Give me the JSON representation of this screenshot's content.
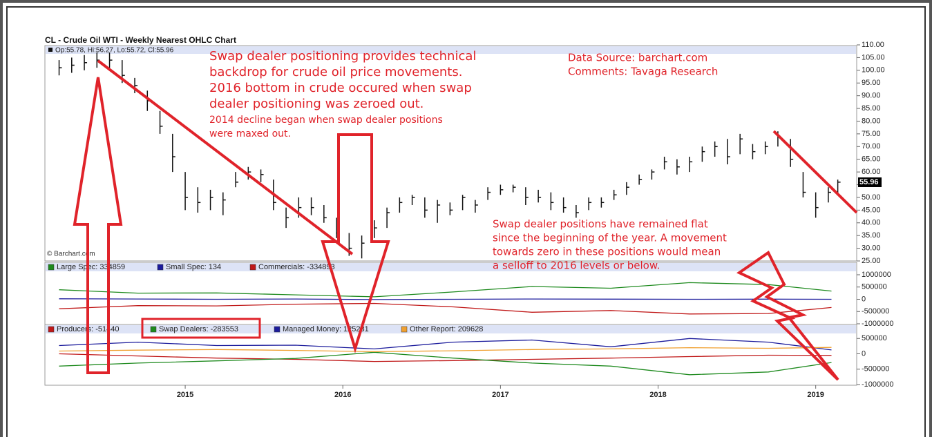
{
  "chart_data": [
    {
      "type": "ohlc",
      "title": "CL - Crude Oil WTI - Weekly Nearest OHLC Chart",
      "ohlc_header": "Op:55.78, Hi:56.27, Lo:55.72, Cl:55.96",
      "last_price": 55.96,
      "source": "© Barchart.com",
      "color": "#111111",
      "x": [
        2014.2,
        2014.28,
        2014.36,
        2014.44,
        2014.52,
        2014.6,
        2014.68,
        2014.76,
        2014.84,
        2014.92,
        2015.0,
        2015.08,
        2015.16,
        2015.24,
        2015.32,
        2015.4,
        2015.48,
        2015.56,
        2015.64,
        2015.72,
        2015.8,
        2015.88,
        2015.96,
        2016.04,
        2016.12,
        2016.2,
        2016.28,
        2016.36,
        2016.44,
        2016.52,
        2016.6,
        2016.68,
        2016.76,
        2016.84,
        2016.92,
        2017.0,
        2017.08,
        2017.16,
        2017.24,
        2017.32,
        2017.4,
        2017.48,
        2017.56,
        2017.64,
        2017.72,
        2017.8,
        2017.88,
        2017.96,
        2018.04,
        2018.12,
        2018.2,
        2018.28,
        2018.36,
        2018.44,
        2018.52,
        2018.6,
        2018.68,
        2018.76,
        2018.84,
        2018.92,
        2019.0,
        2019.08,
        2019.14
      ],
      "high": [
        104,
        105,
        106,
        107,
        107,
        104,
        97,
        92,
        84,
        75,
        60,
        54,
        53,
        52,
        60,
        62,
        61,
        57,
        46,
        50,
        50,
        47,
        42,
        36,
        35,
        41,
        46,
        50,
        51,
        50,
        49,
        48,
        51,
        49,
        54,
        55,
        55,
        54,
        53,
        52,
        50,
        47,
        50,
        50,
        53,
        56,
        59,
        61,
        66,
        65,
        66,
        70,
        72,
        73,
        75,
        71,
        72,
        76,
        73,
        60,
        52,
        54,
        57
      ],
      "low": [
        98,
        99,
        100,
        101,
        101,
        95,
        91,
        84,
        75,
        60,
        45,
        44,
        45,
        43,
        54,
        57,
        56,
        45,
        38,
        42,
        43,
        40,
        34,
        27,
        26,
        34,
        38,
        44,
        47,
        42,
        40,
        43,
        45,
        44,
        49,
        51,
        52,
        47,
        48,
        45,
        44,
        42,
        45,
        46,
        49,
        51,
        55,
        57,
        61,
        59,
        60,
        64,
        66,
        63,
        67,
        65,
        67,
        70,
        62,
        50,
        42,
        48,
        51
      ],
      "close": [
        101,
        102,
        103,
        104,
        104,
        98,
        94,
        88,
        78,
        66,
        50,
        48,
        50,
        49,
        56,
        60,
        59,
        48,
        42,
        46,
        46,
        42,
        36,
        30,
        32,
        38,
        44,
        48,
        50,
        45,
        47,
        45,
        50,
        47,
        52,
        53,
        54,
        50,
        50,
        48,
        46,
        44,
        48,
        48,
        51,
        54,
        57,
        60,
        64,
        62,
        64,
        68,
        70,
        66,
        73,
        68,
        70,
        74,
        65,
        52,
        46,
        52,
        56
      ],
      "xlim": [
        2014.11,
        2019.26
      ],
      "xticks": [
        2015,
        2016,
        2017,
        2018,
        2019
      ],
      "ylim": [
        25,
        110
      ],
      "yticks": [
        {
          "value": 110,
          "label": "110.00"
        },
        {
          "value": 105,
          "label": "105.00"
        },
        {
          "value": 100,
          "label": "100.00"
        },
        {
          "value": 95,
          "label": "95.00"
        },
        {
          "value": 90,
          "label": "90.00"
        },
        {
          "value": 85,
          "label": "85.00"
        },
        {
          "value": 80,
          "label": "80.00"
        },
        {
          "value": 75,
          "label": "75.00"
        },
        {
          "value": 70,
          "label": "70.00"
        },
        {
          "value": 65,
          "label": "65.00"
        },
        {
          "value": 60,
          "label": "60.00"
        },
        {
          "value": 55,
          "label": "55.00"
        },
        {
          "value": 50,
          "label": "50.00"
        },
        {
          "value": 45,
          "label": "45.00"
        },
        {
          "value": 40,
          "label": "40.00"
        },
        {
          "value": 35,
          "label": "35.00"
        },
        {
          "value": 30,
          "label": "30.00"
        },
        {
          "value": 25,
          "label": "25.00"
        }
      ],
      "annotations": [
        {
          "lines": [
            "Swap dealer positioning provides technical",
            "backdrop for crude oil price movements.",
            "2016 bottom in crude occured when swap",
            "dealer positioning was zeroed out."
          ]
        },
        {
          "lines": [
            "2014 decline began when swap dealer positions",
            "were maxed out."
          ]
        },
        {
          "lines": [
            "Data Source: barchart.com",
            "Comments: Tavaga Research"
          ]
        },
        {
          "lines": [
            "Swap dealer positions have remained flat",
            "since the beginning of the year. A movement",
            "towards zero in these positions would mean",
            "a selloff to 2016 levels or below."
          ]
        }
      ]
    },
    {
      "type": "line",
      "x": [
        2014.2,
        2014.7,
        2015.2,
        2015.7,
        2016.2,
        2016.7,
        2017.2,
        2017.7,
        2018.2,
        2018.7,
        2019.1
      ],
      "ylim": [
        -1000000,
        1000000
      ],
      "yticks": [
        1000000,
        500000,
        0,
        -500000,
        -1000000
      ],
      "series": [
        {
          "name": "Large Spec: 334859",
          "color": "#1e8a1e",
          "values": [
            390000,
            250000,
            260000,
            180000,
            100000,
            300000,
            520000,
            450000,
            680000,
            600000,
            334859
          ]
        },
        {
          "name": "Small Spec: 134",
          "color": "#1c1c9c",
          "values": [
            20000,
            10000,
            0,
            10000,
            -10000,
            0,
            10000,
            5000,
            0,
            5000,
            134
          ]
        },
        {
          "name": "Commercials: -334893",
          "color": "#c01818",
          "values": [
            -390000,
            -260000,
            -270000,
            -200000,
            -170000,
            -310000,
            -530000,
            -460000,
            -600000,
            -580000,
            -334893
          ]
        }
      ]
    },
    {
      "type": "line",
      "x": [
        2014.2,
        2014.7,
        2015.2,
        2015.7,
        2016.2,
        2016.7,
        2017.2,
        2017.7,
        2018.2,
        2018.7,
        2019.1
      ],
      "ylim": [
        -1000000,
        1000000
      ],
      "yticks": [
        500000,
        0,
        -500000,
        -1000000
      ],
      "series": [
        {
          "name": "Producers: -51440",
          "color": "#c01818",
          "values": [
            0,
            -70000,
            -140000,
            -180000,
            -250000,
            -220000,
            -180000,
            -140000,
            -90000,
            -45000,
            -51440
          ]
        },
        {
          "name": "Swap Dealers: -283553",
          "color": "#1e8a1e",
          "values": [
            -400000,
            -300000,
            -230000,
            -150000,
            50000,
            -140000,
            -300000,
            -400000,
            -680000,
            -590000,
            -283553
          ]
        },
        {
          "name": "Managed Money: 125231",
          "color": "#1c1c9c",
          "values": [
            270000,
            380000,
            270000,
            280000,
            160000,
            380000,
            450000,
            230000,
            500000,
            380000,
            125231
          ]
        },
        {
          "name": "Other Report: 209628",
          "color": "#f0a030",
          "values": [
            90000,
            120000,
            140000,
            110000,
            70000,
            100000,
            140000,
            160000,
            200000,
            180000,
            209628
          ]
        }
      ]
    }
  ]
}
